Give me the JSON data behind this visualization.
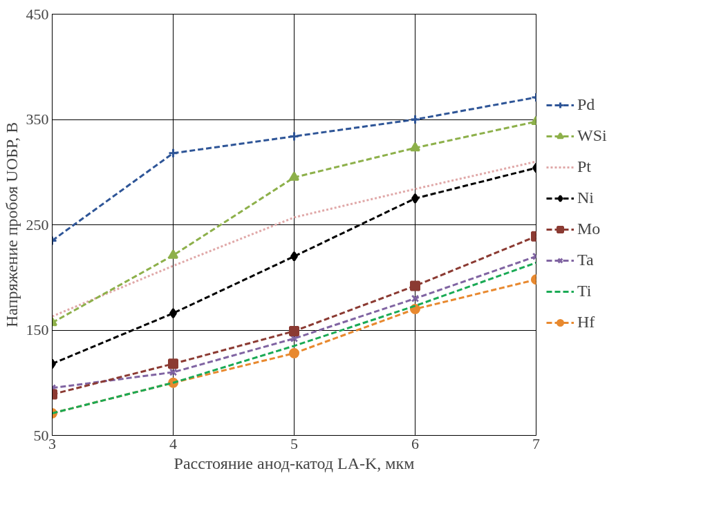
{
  "chart_data": {
    "type": "line",
    "xlabel": "Расстояние анод-катод LA-K, мкм",
    "ylabel": "Напряжение пробоя UОБР, В",
    "x": [
      3,
      4,
      5,
      6,
      7
    ],
    "xlim": [
      3,
      7
    ],
    "xticks": [
      3,
      4,
      5,
      6,
      7
    ],
    "ylim": [
      50,
      450
    ],
    "yticks": [
      50,
      150,
      250,
      350,
      450
    ],
    "grid": true,
    "legend": "right",
    "line_style": "dashed",
    "series": [
      {
        "name": "Pd",
        "color": "#2e5597",
        "marker": "cross",
        "values": [
          235,
          318,
          334,
          350,
          371
        ]
      },
      {
        "name": "WSi",
        "color": "#8db04a",
        "marker": "triangle",
        "values": [
          157,
          221,
          295,
          323,
          348
        ]
      },
      {
        "name": "Pt",
        "color": "#e0a8a8",
        "marker": "none",
        "line_style": "dotted",
        "values": [
          163,
          211,
          257,
          284,
          310
        ]
      },
      {
        "name": "Ni",
        "color": "#000000",
        "marker": "diamond",
        "values": [
          118,
          166,
          220,
          275,
          304
        ]
      },
      {
        "name": "Mo",
        "color": "#8b3a32",
        "marker": "square",
        "values": [
          89,
          118,
          149,
          192,
          239
        ]
      },
      {
        "name": "Ta",
        "color": "#8064a2",
        "marker": "x",
        "values": [
          95,
          110,
          142,
          180,
          220
        ]
      },
      {
        "name": "Ti",
        "color": "#1aaa55",
        "marker": "none",
        "values": [
          71,
          100,
          135,
          173,
          214
        ]
      },
      {
        "name": "Hf",
        "color": "#e8892f",
        "marker": "circle",
        "values": [
          71,
          100,
          128,
          170,
          198
        ]
      }
    ]
  }
}
